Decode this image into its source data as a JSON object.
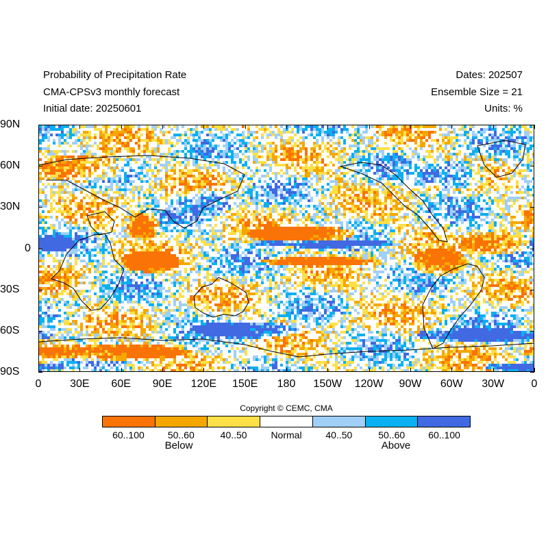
{
  "header": {
    "title_line1": "Probability of Precipitation Rate",
    "title_line2": "CMA-CPSv3 monthly forecast",
    "title_line3": "Initial date: 20250601",
    "dates": "Dates: 202507",
    "ensemble": "Ensemble Size = 21",
    "units": "Units: %"
  },
  "map": {
    "lat_labels": [
      "90N",
      "60N",
      "30N",
      "0",
      "30S",
      "60S",
      "90S"
    ],
    "lon_labels": [
      "0",
      "30E",
      "60E",
      "90E",
      "120E",
      "150E",
      "180",
      "150W",
      "120W",
      "90W",
      "60W",
      "30W",
      "0"
    ]
  },
  "copyright": "Copyright © CEMC, CMA",
  "legend": {
    "bins": [
      {
        "label": "60..100",
        "color": "#f97306"
      },
      {
        "label": "50..60",
        "color": "#f5a700"
      },
      {
        "label": "40..50",
        "color": "#fde047"
      },
      {
        "label": "Normal",
        "color": "#ffffff"
      },
      {
        "label": "40..50",
        "color": "#a0cff8"
      },
      {
        "label": "50..60",
        "color": "#0ab0f0"
      },
      {
        "label": "60..100",
        "color": "#4169e1"
      }
    ],
    "below_label": "Below",
    "above_label": "Above"
  }
}
